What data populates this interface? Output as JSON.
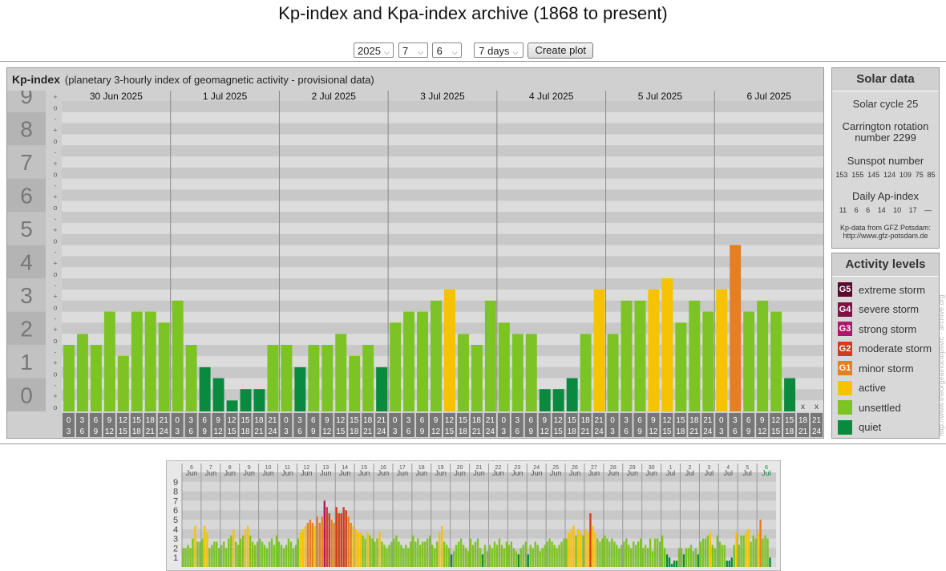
{
  "page": {
    "title": "Kp-index and Kpa-index archive (1868 to present)"
  },
  "controls": {
    "year": "2025",
    "month": "7",
    "day": "6",
    "range": "7 days",
    "create_label": "Create plot"
  },
  "kp_panel": {
    "heading": "Kp-index",
    "subheading": "(planetary 3-hourly index of geomagnetic activity - provisional data)"
  },
  "solar": {
    "title": "Solar data",
    "cycle": "Solar cycle 25",
    "carrington_line1": "Carrington rotation",
    "carrington_line2": "number 2299",
    "sunspot_label": "Sunspot number",
    "sunspot_values": [
      "153",
      "155",
      "145",
      "124",
      "109",
      "75",
      "85"
    ],
    "ap_label": "Daily Ap-index",
    "ap_values": [
      "11",
      "6",
      "6",
      "14",
      "10",
      "17",
      "—"
    ],
    "source_line1": "Kp-data from GFZ Potsdam:",
    "source_line2": "http://www.gfz-potsdam.de"
  },
  "activity": {
    "title": "Activity levels",
    "levels": [
      {
        "code": "G5",
        "label": "extreme storm",
        "color": "#5c0a2c"
      },
      {
        "code": "G4",
        "label": "severe storm",
        "color": "#7e1245"
      },
      {
        "code": "G3",
        "label": "strong storm",
        "color": "#b0166b"
      },
      {
        "code": "G2",
        "label": "moderate storm",
        "color": "#d23c1c"
      },
      {
        "code": "G1",
        "label": "minor storm",
        "color": "#e67e22"
      },
      {
        "code": "",
        "label": "active",
        "color": "#f6c202"
      },
      {
        "code": "",
        "label": "unsettled",
        "color": "#7cc424"
      },
      {
        "code": "",
        "label": "quiet",
        "color": "#0a8a3e"
      }
    ]
  },
  "watermark": "http://www.theorgealnoctopsvic - archive.org",
  "chart_data": [
    {
      "type": "bar",
      "days": [
        "30 Jun 2025",
        "1 Jul 2025",
        "2 Jul 2025",
        "3 Jul 2025",
        "4 Jul 2025",
        "5 Jul 2025",
        "6 Jul 2025"
      ],
      "y_ticks": [
        "0",
        "1",
        "2",
        "3",
        "4",
        "5",
        "6",
        "7",
        "8",
        "9"
      ],
      "sub_ticks": [
        "o",
        "+",
        "-"
      ],
      "x_top": [
        "0",
        "3",
        "6",
        "9",
        "12",
        "15",
        "18",
        "21"
      ],
      "x_bottom": [
        "3",
        "6",
        "9",
        "12",
        "15",
        "18",
        "21",
        "24"
      ],
      "missing_mark": "x",
      "ylim": [
        0,
        9.33
      ],
      "values": [
        2.0,
        2.33,
        2.0,
        3.0,
        1.67,
        3.0,
        3.0,
        2.67,
        3.33,
        2.0,
        1.33,
        1.0,
        0.33,
        0.67,
        0.67,
        2.0,
        2.0,
        1.33,
        2.0,
        2.0,
        2.33,
        1.67,
        2.0,
        1.33,
        2.67,
        3.0,
        3.0,
        3.33,
        3.67,
        2.33,
        2.0,
        3.33,
        2.67,
        2.33,
        2.33,
        0.67,
        0.67,
        1.0,
        2.33,
        3.67,
        2.33,
        3.33,
        3.33,
        3.67,
        4.0,
        2.67,
        3.33,
        3.0,
        3.67,
        5.0,
        3.0,
        3.33,
        3.0,
        1.0,
        null,
        null
      ],
      "levels": [
        "unsettled",
        "unsettled",
        "unsettled",
        "unsettled",
        "unsettled",
        "unsettled",
        "unsettled",
        "unsettled",
        "unsettled",
        "unsettled",
        "quiet",
        "quiet",
        "quiet",
        "quiet",
        "quiet",
        "unsettled",
        "unsettled",
        "quiet",
        "unsettled",
        "unsettled",
        "unsettled",
        "unsettled",
        "unsettled",
        "quiet",
        "unsettled",
        "unsettled",
        "unsettled",
        "unsettled",
        "active",
        "unsettled",
        "unsettled",
        "unsettled",
        "unsettled",
        "unsettled",
        "unsettled",
        "quiet",
        "quiet",
        "quiet",
        "unsettled",
        "active",
        "unsettled",
        "unsettled",
        "unsettled",
        "active",
        "active",
        "unsettled",
        "unsettled",
        "unsettled",
        "active",
        "G1",
        "unsettled",
        "unsettled",
        "unsettled",
        "quiet",
        "none",
        "none"
      ]
    },
    {
      "type": "bar",
      "day_labels": [
        {
          "d": "6",
          "m": "Jun"
        },
        {
          "d": "7",
          "m": "Jun"
        },
        {
          "d": "8",
          "m": "Jun"
        },
        {
          "d": "9",
          "m": "Jun"
        },
        {
          "d": "10",
          "m": "Jun"
        },
        {
          "d": "11",
          "m": "Jun"
        },
        {
          "d": "12",
          "m": "Jun"
        },
        {
          "d": "13",
          "m": "Jun"
        },
        {
          "d": "14",
          "m": "Jun"
        },
        {
          "d": "15",
          "m": "Jun"
        },
        {
          "d": "16",
          "m": "Jun"
        },
        {
          "d": "17",
          "m": "Jun"
        },
        {
          "d": "18",
          "m": "Jun"
        },
        {
          "d": "19",
          "m": "Jun"
        },
        {
          "d": "20",
          "m": "Jun"
        },
        {
          "d": "21",
          "m": "Jun"
        },
        {
          "d": "22",
          "m": "Jun"
        },
        {
          "d": "23",
          "m": "Jun"
        },
        {
          "d": "24",
          "m": "Jun"
        },
        {
          "d": "25",
          "m": "Jun"
        },
        {
          "d": "26",
          "m": "Jun"
        },
        {
          "d": "27",
          "m": "Jun"
        },
        {
          "d": "28",
          "m": "Jun"
        },
        {
          "d": "29",
          "m": "Jun"
        },
        {
          "d": "30",
          "m": "Jun"
        },
        {
          "d": "1",
          "m": "Jul"
        },
        {
          "d": "2",
          "m": "Jul"
        },
        {
          "d": "3",
          "m": "Jul"
        },
        {
          "d": "4",
          "m": "Jul"
        },
        {
          "d": "5",
          "m": "Jul"
        },
        {
          "d": "6",
          "m": "Jul"
        }
      ],
      "y_ticks": [
        "1",
        "2",
        "3",
        "4",
        "5",
        "6",
        "7",
        "8",
        "9"
      ],
      "ylim": [
        0,
        9.5
      ],
      "daily_values": [
        [
          2.0,
          2.0,
          2.33,
          2.0,
          3.0,
          4.33,
          2.67,
          2.67
        ],
        [
          3.0,
          4.33,
          3.67,
          2.0,
          2.33,
          2.67,
          2.67,
          2.0
        ],
        [
          2.33,
          2.67,
          2.0,
          3.0,
          3.33,
          4.0,
          2.67,
          2.33
        ],
        [
          3.0,
          3.33,
          4.0,
          4.33,
          3.33,
          2.67,
          2.33,
          2.67
        ],
        [
          3.0,
          2.67,
          2.33,
          2.0,
          2.67,
          3.0,
          2.33,
          3.33
        ],
        [
          2.67,
          2.33,
          2.0,
          2.33,
          3.0,
          2.67,
          2.0,
          2.33
        ],
        [
          3.0,
          3.67,
          4.0,
          4.33,
          4.67,
          5.0,
          4.67,
          4.33
        ],
        [
          5.33,
          4.67,
          5.33,
          7.0,
          6.33,
          5.67,
          5.0,
          4.67
        ],
        [
          6.33,
          5.67,
          5.67,
          6.33,
          6.0,
          5.33,
          4.67,
          4.33
        ],
        [
          4.0,
          3.67,
          3.67,
          3.33,
          3.0,
          3.67,
          3.33,
          3.0
        ],
        [
          2.67,
          3.0,
          3.67,
          2.67,
          2.33,
          2.0,
          2.33,
          2.67
        ],
        [
          3.0,
          3.33,
          2.67,
          2.33,
          2.0,
          2.33,
          2.0,
          2.67
        ],
        [
          3.33,
          2.67,
          3.0,
          2.33,
          2.67,
          2.67,
          3.0,
          3.33
        ],
        [
          2.33,
          2.0,
          2.67,
          3.67,
          4.33,
          2.67,
          2.33,
          2.0
        ],
        [
          1.33,
          1.67,
          2.33,
          2.67,
          3.0,
          2.33,
          2.0,
          1.67
        ],
        [
          3.0,
          2.33,
          2.67,
          3.0,
          2.0,
          1.33,
          2.33,
          1.67
        ],
        [
          2.33,
          2.0,
          2.67,
          2.33,
          3.0,
          2.33,
          2.0,
          2.67
        ],
        [
          2.33,
          2.67,
          2.0,
          1.67,
          1.33,
          2.0,
          2.33,
          2.67
        ],
        [
          1.33,
          2.33,
          2.0,
          2.67,
          2.33,
          1.67,
          2.0,
          2.33
        ],
        [
          2.67,
          3.0,
          2.67,
          2.33,
          2.0,
          2.33,
          2.67,
          3.0
        ],
        [
          3.0,
          3.67,
          4.0,
          4.33,
          3.33,
          4.0,
          3.67,
          3.33
        ],
        [
          4.0,
          3.67,
          5.67,
          4.33,
          3.67,
          3.0,
          2.67,
          3.0
        ],
        [
          3.33,
          3.0,
          2.67,
          3.0,
          2.67,
          2.33,
          2.0,
          2.33
        ],
        [
          2.67,
          3.0,
          2.33,
          2.0,
          2.67,
          2.33,
          2.67,
          3.0
        ],
        [
          2.0,
          2.33,
          2.0,
          3.0,
          1.67,
          3.0,
          3.0,
          2.67
        ],
        [
          3.33,
          2.0,
          1.33,
          1.0,
          0.33,
          0.67,
          0.67,
          2.0
        ],
        [
          2.0,
          1.33,
          2.0,
          2.0,
          2.33,
          1.67,
          2.0,
          1.33
        ],
        [
          2.67,
          3.0,
          3.0,
          3.33,
          3.67,
          2.33,
          2.0,
          3.33
        ],
        [
          2.67,
          2.33,
          2.33,
          0.67,
          0.67,
          1.0,
          2.33,
          3.67
        ],
        [
          2.33,
          3.33,
          3.33,
          3.67,
          4.0,
          2.67,
          3.33,
          3.0
        ],
        [
          3.67,
          5.0,
          3.0,
          3.33,
          3.0,
          1.0,
          null,
          null
        ]
      ]
    }
  ]
}
